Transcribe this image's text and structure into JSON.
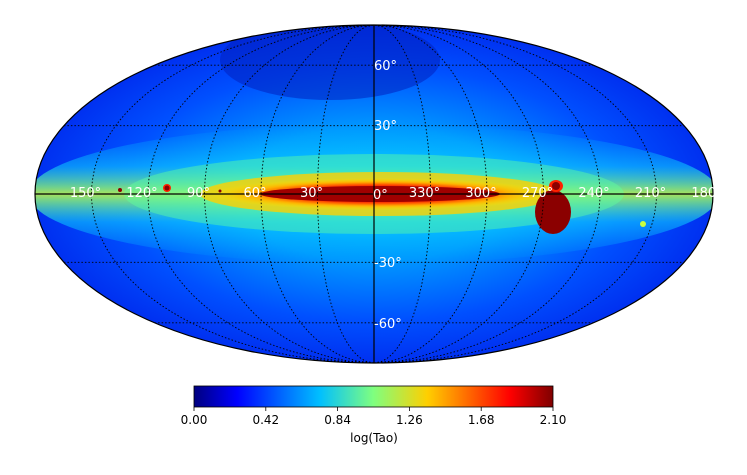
{
  "chart_data": {
    "type": "heatmap",
    "projection": "mollweide",
    "colormap": "jet",
    "colorbar": {
      "label": "log(Tao)",
      "range": [
        0.0,
        2.1
      ],
      "ticks": [
        "0.00",
        "0.42",
        "0.84",
        "1.26",
        "1.68",
        "2.10"
      ]
    },
    "graticule": {
      "latitude_labels": [
        "60°",
        "30°",
        "0°",
        "-30°",
        "-60°"
      ],
      "longitude_labels": [
        "150°",
        "120°",
        "90°",
        "60°",
        "30°",
        "0°",
        "330°",
        "300°",
        "270°",
        "240°",
        "210°",
        "180°"
      ]
    },
    "features": [
      {
        "name": "galactic plane band",
        "value_range": [
          0.9,
          2.1
        ]
      },
      {
        "name": "large blob near 270°",
        "lon": 280,
        "lat": -12,
        "value": 2.1
      },
      {
        "name": "small blob near 270°",
        "lon": 280,
        "lat": 3,
        "value": 2.1
      },
      {
        "name": "spot near 120°",
        "lon": 122,
        "lat": 3,
        "value": 2.0
      },
      {
        "name": "spot near 210°",
        "lon": 202,
        "lat": -18,
        "value": 0.95
      }
    ],
    "grid": true
  }
}
